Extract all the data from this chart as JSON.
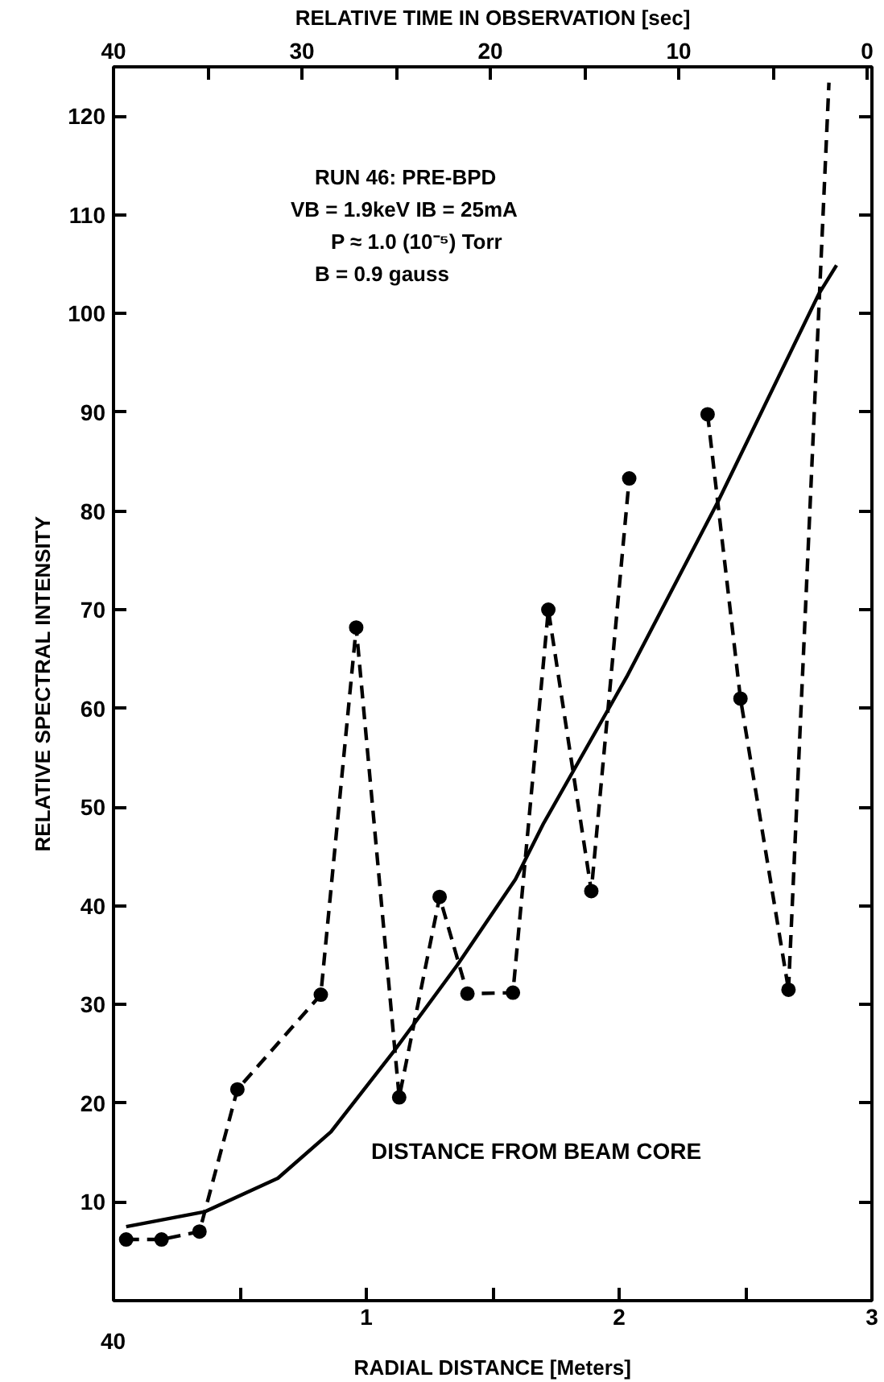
{
  "chart_data": {
    "type": "line",
    "xlabel": "RADIAL DISTANCE [Meters]",
    "x2label": "RELATIVE TIME IN OBSERVATION [sec]",
    "ylabel": "RELATIVE SPECTRAL INTENSITY",
    "xlim": [
      0,
      3
    ],
    "xticks": [
      {
        "value": 0,
        "label": null
      },
      {
        "value": 0.5,
        "label": null
      },
      1,
      {
        "value": 1.5,
        "label": null
      },
      2,
      {
        "value": 2.5,
        "label": null
      },
      3
    ],
    "x2lim": [
      40,
      -0.25
    ],
    "x2ticks": [
      40,
      {
        "value": 35,
        "label": null
      },
      30,
      {
        "value": 25,
        "label": null
      },
      20,
      {
        "value": 15,
        "label": null
      },
      10,
      {
        "value": 5,
        "label": null
      },
      0
    ],
    "ylim": [
      0,
      125
    ],
    "yticks": [
      10,
      20,
      30,
      40,
      50,
      60,
      70,
      80,
      90,
      100,
      110,
      120
    ],
    "grid": false,
    "annotations": [
      "RUN 46: PRE-BPD",
      "VB = 1.9keV   IB = 25mA",
      "P ≈ 1.0 (10⁻⁵) Torr",
      "B = 0.9 gauss",
      "DISTANCE FROM BEAM CORE",
      "40"
    ],
    "series": [
      {
        "color": "#000000",
        "line_style": "dashed",
        "marker": "circle",
        "x": [
          0.05,
          0.19,
          0.34,
          0.49,
          0.82,
          0.96,
          1.13,
          1.29,
          1.4,
          1.58,
          1.72,
          1.89,
          2.04,
          2.2,
          2.35,
          2.48,
          2.67
        ],
        "values": [
          6.2,
          6.2,
          7.0,
          21.4,
          31.0,
          68.2,
          20.6,
          40.9,
          31.1,
          31.2,
          70.0,
          41.5,
          83.3,
          null,
          89.8,
          61.0,
          31.5
        ]
      },
      {
        "color": "#000000",
        "line_style": "dashed",
        "marker": "none",
        "x": [
          2.67,
          2.83
        ],
        "values": [
          31.5,
          123.4
        ]
      },
      {
        "color": "#000000",
        "line_style": "solid",
        "marker": "none",
        "x": [
          0.05,
          0.36,
          0.65,
          0.86,
          1.11,
          1.36,
          1.59,
          1.7,
          2.03,
          2.39,
          2.79,
          2.86
        ],
        "values": [
          7.5,
          9.0,
          12.4,
          17.1,
          25.3,
          34.0,
          42.7,
          48.3,
          63.2,
          80.9,
          102.0,
          104.9
        ]
      }
    ]
  }
}
